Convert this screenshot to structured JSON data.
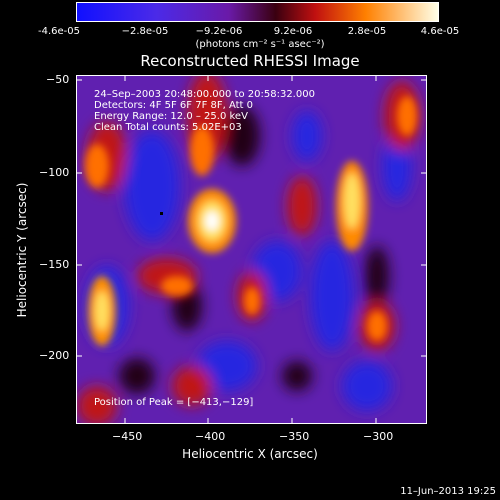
{
  "colorbar": {
    "labels": [
      "-4.6e-05",
      "−2.8e-05",
      "−9.2e-06",
      "9.2e-06",
      "2.8e-05",
      "4.6e-05"
    ],
    "units": "(photons cm⁻² s⁻¹ asec⁻²)"
  },
  "title": "Reconstructed RHESSI Image",
  "info": {
    "time": "24–Sep–2003 20:48:00.000 to 20:58:32.000",
    "detectors": "Detectors: 4F 5F 6F 7F 8F, Att 0",
    "energy": "Energy Range: 12.0 – 25.0 keV",
    "clean": "Clean    Total counts: 5.02E+03",
    "peak": "Position of Peak = [−413,−129]"
  },
  "axes": {
    "xlabel": "Heliocentric X (arcsec)",
    "ylabel": "Heliocentric Y (arcsec)",
    "xticks": [
      "−450",
      "−400",
      "−350",
      "−300"
    ],
    "yticks": [
      "−50",
      "−100",
      "−150",
      "−200"
    ]
  },
  "footer": {
    "timestamp": "11–Jun–2013 19:25"
  },
  "colors": {
    "palette": [
      "#000000",
      "#3a0a8a",
      "#7a1fb0",
      "#b0301a",
      "#e06010",
      "#ff9a00",
      "#ffe070",
      "#ffffff"
    ],
    "background_blue": "#3030d8"
  }
}
